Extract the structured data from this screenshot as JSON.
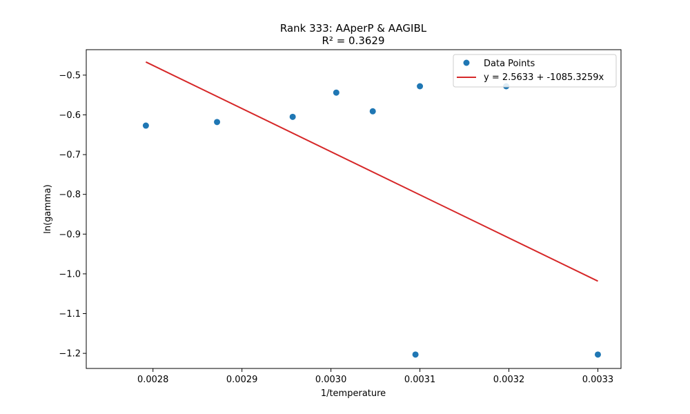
{
  "chart_data": {
    "type": "scatter",
    "title": "Rank 333: AAperP & AAGIBL",
    "subtitle": "R² = 0.3629",
    "xlabel": "1/temperature",
    "ylabel": "ln(gamma)",
    "xlim": [
      0.002725,
      0.003326
    ],
    "ylim": [
      -1.238,
      -0.436
    ],
    "xticks": [
      0.0028,
      0.0029,
      0.003,
      0.0031,
      0.0032,
      0.0033
    ],
    "xtick_labels": [
      "0.0028",
      "0.0029",
      "0.0030",
      "0.0031",
      "0.0032",
      "0.0033"
    ],
    "yticks": [
      -1.2,
      -1.1,
      -1.0,
      -0.9,
      -0.8,
      -0.7,
      -0.6,
      -0.5
    ],
    "ytick_labels": [
      "−1.2",
      "−1.1",
      "−1.0",
      "−0.9",
      "−0.8",
      "−0.7",
      "−0.6",
      "−0.5"
    ],
    "grid": false,
    "legend_position": "top-right",
    "series": [
      {
        "name": "Data Points",
        "kind": "scatter",
        "color": "#1f77b4",
        "points": [
          [
            0.002792,
            -0.627
          ],
          [
            0.002872,
            -0.618
          ],
          [
            0.002957,
            -0.605
          ],
          [
            0.003006,
            -0.544
          ],
          [
            0.003047,
            -0.591
          ],
          [
            0.003095,
            -1.203
          ],
          [
            0.0031,
            -0.528
          ],
          [
            0.003197,
            -0.528
          ],
          [
            0.0033,
            -1.203
          ]
        ]
      },
      {
        "name": "y = 2.5633 + -1085.3259x",
        "kind": "line",
        "color": "#d62728",
        "intercept": 2.5633,
        "slope": -1085.3259,
        "x_range": [
          0.002792,
          0.0033
        ]
      }
    ]
  }
}
